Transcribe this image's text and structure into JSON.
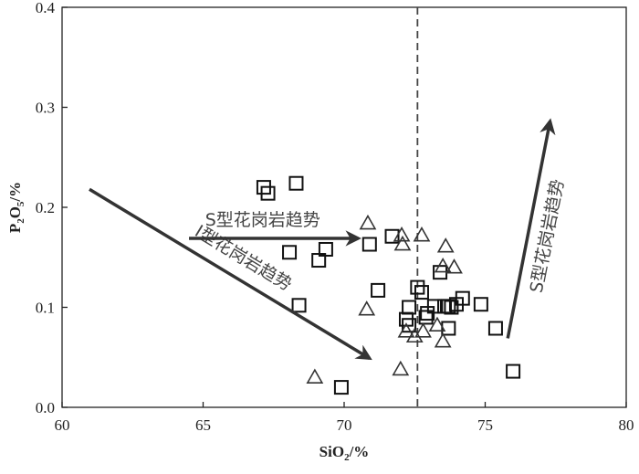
{
  "chart_data": {
    "type": "scatter",
    "title": "",
    "xlabel": "SiO2/%",
    "ylabel": "P2O5/%",
    "xlim": [
      60,
      80
    ],
    "ylim": [
      0.0,
      0.4
    ],
    "xticks": [
      "60",
      "65",
      "70",
      "75",
      "80"
    ],
    "yticks": [
      "0.0",
      "0.1",
      "0.2",
      "0.3",
      "0.4"
    ],
    "grid": false,
    "reference_line": {
      "x": 72.6,
      "style": "dashed"
    },
    "series": [
      {
        "name": "squares",
        "marker": "square",
        "points": [
          [
            67.15,
            0.22
          ],
          [
            67.3,
            0.214
          ],
          [
            68.3,
            0.224
          ],
          [
            68.06,
            0.155
          ],
          [
            69.35,
            0.158
          ],
          [
            69.1,
            0.147
          ],
          [
            70.9,
            0.163
          ],
          [
            71.7,
            0.171
          ],
          [
            68.4,
            0.102
          ],
          [
            71.2,
            0.117
          ],
          [
            69.9,
            0.02
          ],
          [
            72.6,
            0.12
          ],
          [
            72.75,
            0.115
          ],
          [
            72.3,
            0.1
          ],
          [
            72.2,
            0.088
          ],
          [
            72.3,
            0.082
          ],
          [
            72.9,
            0.09
          ],
          [
            72.95,
            0.094
          ],
          [
            73.2,
            0.101
          ],
          [
            73.4,
            0.135
          ],
          [
            73.56,
            0.101
          ],
          [
            73.7,
            0.101
          ],
          [
            73.8,
            0.1
          ],
          [
            73.98,
            0.103
          ],
          [
            74.2,
            0.109
          ],
          [
            74.85,
            0.103
          ],
          [
            75.37,
            0.079
          ],
          [
            75.99,
            0.036
          ],
          [
            73.7,
            0.079
          ]
        ]
      },
      {
        "name": "triangles",
        "marker": "triangle",
        "points": [
          [
            70.84,
            0.184
          ],
          [
            72.04,
            0.172
          ],
          [
            72.75,
            0.172
          ],
          [
            72.07,
            0.163
          ],
          [
            73.6,
            0.161
          ],
          [
            73.5,
            0.141
          ],
          [
            73.9,
            0.14
          ],
          [
            70.8,
            0.098
          ],
          [
            72.2,
            0.076
          ],
          [
            72.8,
            0.076
          ],
          [
            73.3,
            0.082
          ],
          [
            73.5,
            0.066
          ],
          [
            72.0,
            0.038
          ],
          [
            68.96,
            0.03
          ],
          [
            72.5,
            0.071
          ]
        ]
      }
    ],
    "annotations": [
      {
        "text": "I型花岗岩趋势",
        "arrow_from": [
          60.97,
          0.218
        ],
        "arrow_to": [
          70.9,
          0.049
        ]
      },
      {
        "text": "S型花岗岩趋势",
        "arrow_from": [
          64.5,
          0.169
        ],
        "arrow_to": [
          70.5,
          0.169
        ]
      },
      {
        "text": "S型花岗岩趋势",
        "arrow_from": [
          75.8,
          0.069
        ],
        "arrow_to": [
          77.3,
          0.286
        ]
      }
    ]
  }
}
